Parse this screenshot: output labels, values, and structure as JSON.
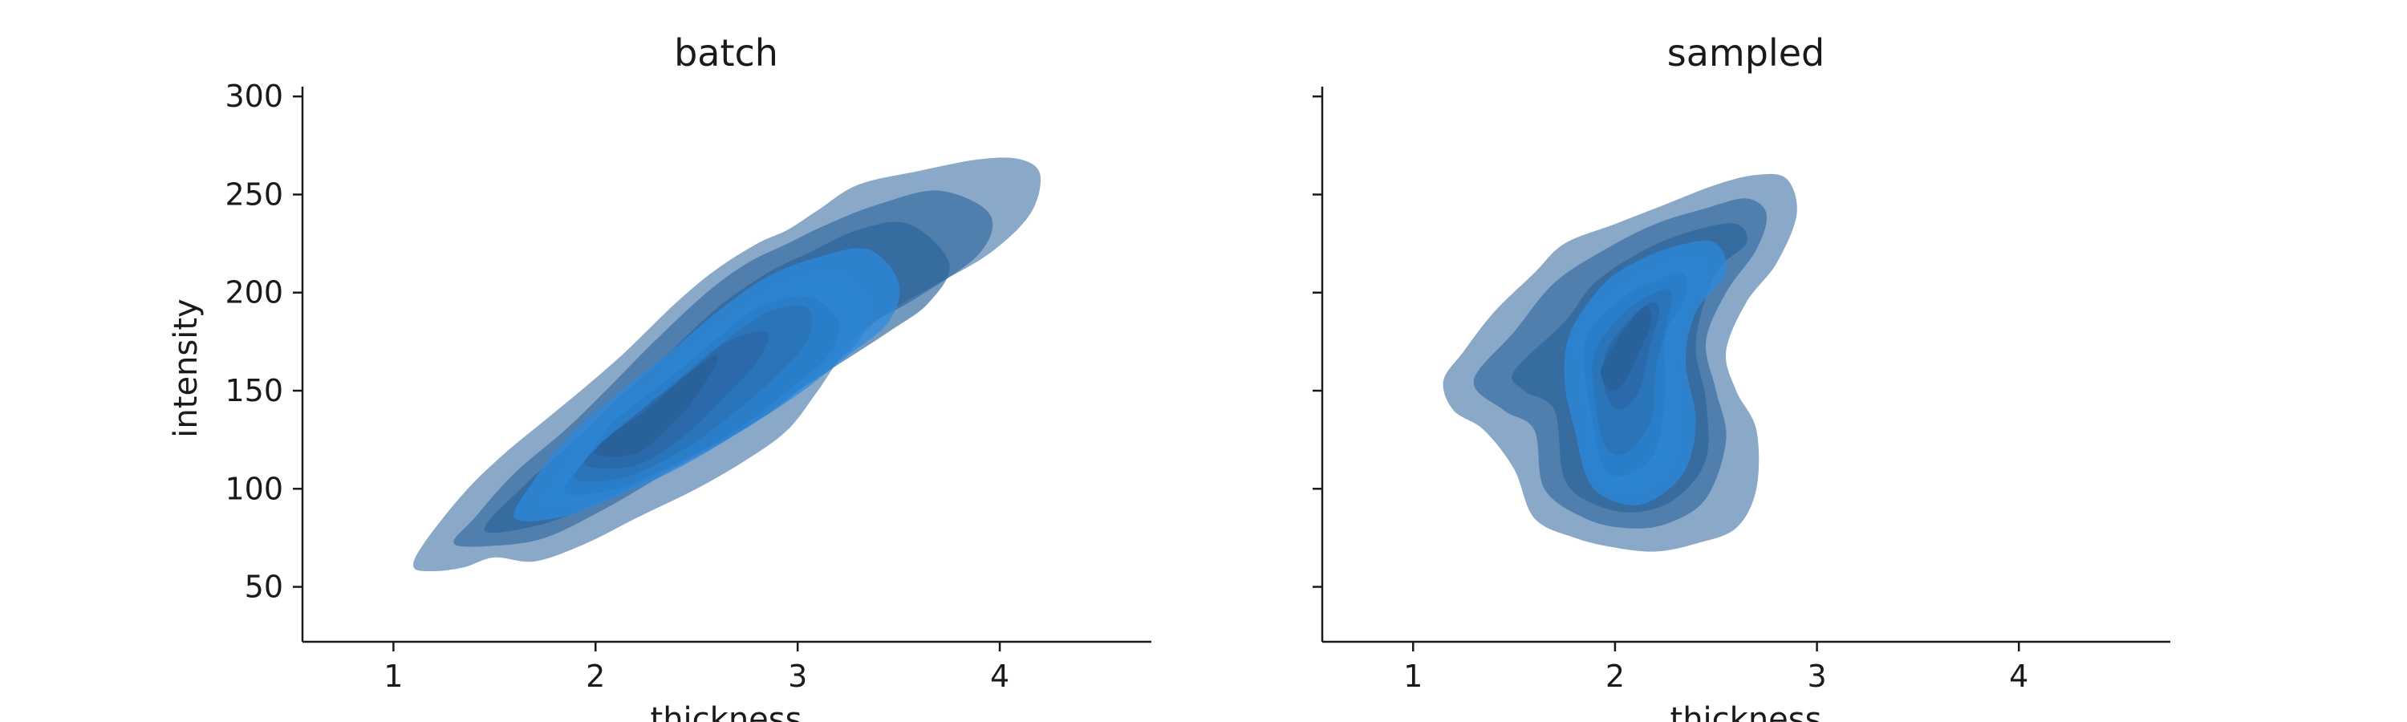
{
  "chart_data": [
    {
      "type": "kde-contour",
      "title": "batch",
      "xlabel": "thickness",
      "ylabel": "intensity",
      "xlim": [
        0.55,
        4.75
      ],
      "ylim": [
        22,
        305
      ],
      "xticks": [
        "1",
        "2",
        "3",
        "4"
      ],
      "yticks": [
        "50",
        "100",
        "150",
        "200",
        "250",
        "300"
      ],
      "fill_color": "#2b8ee6",
      "levels": [
        {
          "level": 1,
          "x": [
            1.1,
            1.2,
            1.35,
            1.5,
            1.7,
            1.95,
            2.2,
            2.5,
            2.75,
            2.95,
            3.1,
            3.25,
            3.45,
            3.7,
            3.95,
            4.15,
            4.2,
            4.1,
            3.9,
            3.6,
            3.3,
            3.1,
            2.95,
            2.8,
            2.6,
            2.4,
            2.15,
            1.95,
            1.75,
            1.55,
            1.35,
            1.15
          ],
          "y": [
            60,
            58,
            60,
            65,
            63,
            72,
            85,
            100,
            115,
            130,
            150,
            172,
            190,
            205,
            220,
            240,
            260,
            268,
            268,
            262,
            255,
            242,
            232,
            225,
            212,
            195,
            170,
            152,
            135,
            118,
            98,
            72
          ]
        },
        {
          "level": 2,
          "x": [
            1.3,
            1.5,
            1.75,
            2.05,
            2.35,
            2.65,
            2.9,
            3.1,
            3.3,
            3.6,
            3.9,
            3.95,
            3.7,
            3.4,
            3.15,
            2.95,
            2.75,
            2.55,
            2.3,
            2.05,
            1.85,
            1.6,
            1.4
          ],
          "y": [
            72,
            71,
            75,
            90,
            108,
            125,
            142,
            160,
            180,
            198,
            220,
            240,
            252,
            245,
            235,
            225,
            215,
            200,
            176,
            150,
            130,
            108,
            85
          ]
        },
        {
          "level": 3,
          "x": [
            1.45,
            1.7,
            1.95,
            2.25,
            2.55,
            2.85,
            3.15,
            3.45,
            3.65,
            3.75,
            3.55,
            3.3,
            3.05,
            2.85,
            2.6,
            2.35,
            2.1,
            1.9,
            1.65
          ],
          "y": [
            79,
            81,
            90,
            105,
            122,
            140,
            160,
            180,
            195,
            215,
            235,
            232,
            220,
            210,
            192,
            168,
            145,
            125,
            102
          ]
        },
        {
          "level": 4,
          "x": [
            1.6,
            1.85,
            2.1,
            2.4,
            2.7,
            3.0,
            3.25,
            3.45,
            3.5,
            3.35,
            3.1,
            2.85,
            2.6,
            2.35,
            2.1,
            1.85,
            1.7
          ],
          "y": [
            85,
            86,
            96,
            110,
            128,
            148,
            168,
            185,
            205,
            222,
            218,
            208,
            190,
            168,
            148,
            125,
            105
          ]
        },
        {
          "level": 5,
          "x": [
            1.75,
            2.0,
            2.25,
            2.55,
            2.85,
            3.1,
            3.3,
            3.35,
            3.2,
            2.95,
            2.7,
            2.45,
            2.25,
            2.0,
            1.85
          ],
          "y": [
            92,
            93,
            104,
            120,
            138,
            158,
            175,
            195,
            210,
            205,
            190,
            170,
            152,
            130,
            110
          ]
        },
        {
          "level": 6,
          "x": [
            1.85,
            2.1,
            2.4,
            2.7,
            2.95,
            3.15,
            3.2,
            3.05,
            2.8,
            2.55,
            2.35,
            2.1,
            1.95
          ],
          "y": [
            98,
            100,
            113,
            130,
            150,
            168,
            185,
            198,
            192,
            172,
            155,
            135,
            115
          ]
        },
        {
          "level": 7,
          "x": [
            1.9,
            2.15,
            2.45,
            2.7,
            2.9,
            3.05,
            3.05,
            2.85,
            2.6,
            2.4,
            2.2,
            2.0
          ],
          "y": [
            105,
            106,
            121,
            140,
            158,
            176,
            192,
            190,
            172,
            155,
            138,
            120
          ]
        },
        {
          "level": 8,
          "x": [
            1.95,
            2.2,
            2.45,
            2.65,
            2.8,
            2.85,
            2.65,
            2.45,
            2.25,
            2.05
          ],
          "y": [
            112,
            112,
            128,
            148,
            165,
            180,
            175,
            158,
            142,
            125
          ]
        },
        {
          "level": 9,
          "x": [
            2.0,
            2.2,
            2.4,
            2.55,
            2.6,
            2.45,
            2.25,
            2.08
          ],
          "y": [
            118,
            118,
            135,
            155,
            168,
            158,
            140,
            128
          ]
        }
      ]
    },
    {
      "type": "kde-contour",
      "title": "sampled",
      "xlabel": "thickness",
      "ylabel": "",
      "xlim": [
        0.55,
        4.75
      ],
      "ylim": [
        22,
        305
      ],
      "xticks": [
        "1",
        "2",
        "3",
        "4"
      ],
      "yticks": [
        "50",
        "100",
        "150",
        "200",
        "250",
        "300"
      ],
      "fill_color": "#2b8ee6",
      "levels": [
        {
          "level": 1,
          "x": [
            1.4,
            1.6,
            1.75,
            2.0,
            2.25,
            2.5,
            2.7,
            2.85,
            2.9,
            2.8,
            2.65,
            2.55,
            2.6,
            2.7,
            2.7,
            2.6,
            2.4,
            2.2,
            2.0,
            1.8,
            1.6,
            1.5,
            1.35,
            1.2,
            1.15,
            1.25
          ],
          "y": [
            190,
            210,
            225,
            235,
            245,
            255,
            260,
            258,
            240,
            215,
            195,
            170,
            150,
            130,
            100,
            80,
            72,
            68,
            70,
            75,
            85,
            110,
            130,
            140,
            155,
            170
          ]
        },
        {
          "level": 2,
          "x": [
            1.5,
            1.7,
            1.95,
            2.2,
            2.45,
            2.65,
            2.75,
            2.7,
            2.55,
            2.45,
            2.5,
            2.55,
            2.45,
            2.25,
            2.05,
            1.85,
            1.65,
            1.6,
            1.45,
            1.3
          ],
          "y": [
            180,
            205,
            222,
            235,
            243,
            248,
            240,
            222,
            200,
            175,
            150,
            125,
            95,
            82,
            80,
            85,
            100,
            130,
            140,
            155
          ]
        },
        {
          "level": 3,
          "x": [
            1.75,
            1.9,
            2.15,
            2.4,
            2.6,
            2.65,
            2.5,
            2.4,
            2.45,
            2.45,
            2.3,
            2.1,
            1.9,
            1.75,
            1.7,
            1.55,
            1.5
          ],
          "y": [
            185,
            205,
            222,
            232,
            235,
            225,
            210,
            175,
            145,
            115,
            95,
            88,
            92,
            105,
            140,
            150,
            160
          ]
        },
        {
          "level": 4,
          "x": [
            1.78,
            1.95,
            2.15,
            2.35,
            2.5,
            2.55,
            2.4,
            2.35,
            2.4,
            2.35,
            2.2,
            2.05,
            1.88,
            1.8,
            1.75
          ],
          "y": [
            180,
            205,
            218,
            225,
            225,
            210,
            190,
            165,
            135,
            110,
            95,
            92,
            102,
            130,
            155
          ]
        },
        {
          "level": 5,
          "x": [
            1.82,
            2.0,
            2.2,
            2.38,
            2.45,
            2.35,
            2.3,
            2.32,
            2.28,
            2.15,
            2.0,
            1.88,
            1.85
          ],
          "y": [
            180,
            200,
            212,
            218,
            210,
            190,
            165,
            135,
            112,
            100,
            98,
            110,
            145
          ]
        },
        {
          "level": 6,
          "x": [
            1.85,
            2.02,
            2.2,
            2.33,
            2.35,
            2.25,
            2.25,
            2.2,
            2.08,
            1.95,
            1.88
          ],
          "y": [
            175,
            196,
            206,
            210,
            198,
            178,
            150,
            120,
            108,
            110,
            140
          ]
        },
        {
          "level": 7,
          "x": [
            1.9,
            2.05,
            2.2,
            2.28,
            2.25,
            2.2,
            2.18,
            2.05,
            1.95,
            1.9
          ],
          "y": [
            170,
            190,
            200,
            200,
            182,
            160,
            135,
            118,
            122,
            145
          ]
        },
        {
          "level": 8,
          "x": [
            1.95,
            2.06,
            2.18,
            2.22,
            2.17,
            2.12,
            2.02,
            1.95
          ],
          "y": [
            168,
            185,
            195,
            190,
            172,
            150,
            140,
            150
          ]
        },
        {
          "level": 9,
          "x": [
            1.95,
            2.05,
            2.15,
            2.18,
            2.12,
            2.05,
            1.98,
            1.93
          ],
          "y": [
            165,
            182,
            193,
            185,
            170,
            155,
            150,
            158
          ]
        }
      ]
    }
  ]
}
